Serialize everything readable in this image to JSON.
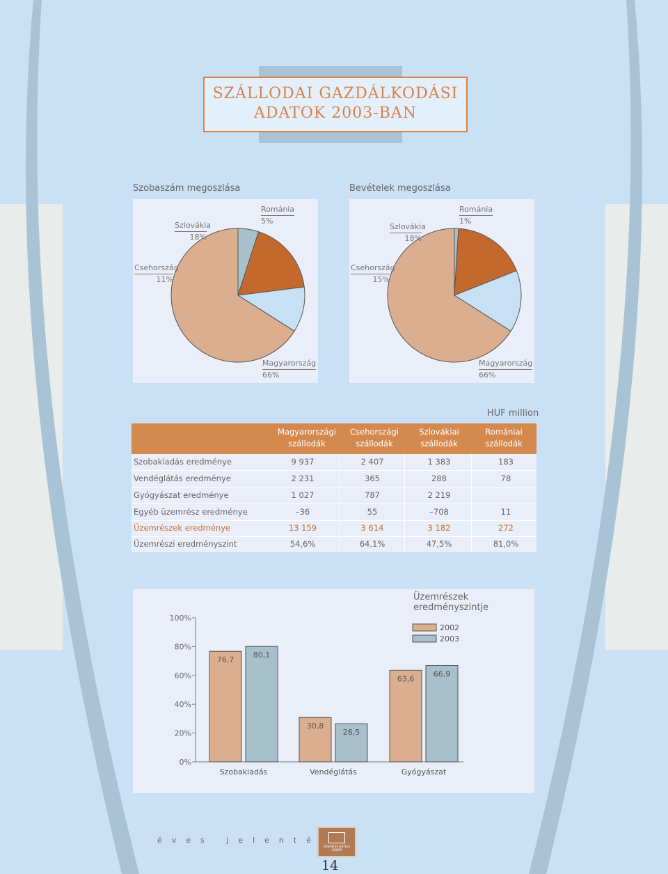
{
  "title": {
    "line1": "SZÁLLODAI GAZDÁLKODÁSI",
    "line2": "ADATOK 2003-BAN"
  },
  "pie_left": {
    "caption": "Szobaszám megoszlása",
    "labels": [
      {
        "name": "Románia",
        "pct": "5%"
      },
      {
        "name": "Szlovákia",
        "pct": "18%"
      },
      {
        "name": "Csehország",
        "pct": "11%"
      },
      {
        "name": "Magyarország",
        "pct": "66%"
      }
    ]
  },
  "pie_right": {
    "caption": "Bevételek megoszlása",
    "labels": [
      {
        "name": "Románia",
        "pct": "1%"
      },
      {
        "name": "Szlovákia",
        "pct": "18%"
      },
      {
        "name": "Csehország",
        "pct": "15%"
      },
      {
        "name": "Magyarország",
        "pct": "66%"
      }
    ]
  },
  "table": {
    "unit": "HUF million",
    "columns": [
      [
        "Magyarországi",
        "szállodák"
      ],
      [
        "Csehországi",
        "szállodák"
      ],
      [
        "Szlovákiai",
        "szállodák"
      ],
      [
        "Romániai",
        "szállodák"
      ]
    ],
    "rows": [
      {
        "label": "Szobakiadás eredménye",
        "values": [
          "9 937",
          "2 407",
          "1 383",
          "183"
        ]
      },
      {
        "label": "Vendéglátás eredménye",
        "values": [
          "2 231",
          "365",
          "288",
          "78"
        ]
      },
      {
        "label": "Gyógyászat eredménye",
        "values": [
          "1 027",
          "787",
          "2 219",
          ""
        ]
      },
      {
        "label": "Egyéb üzemrész eredménye",
        "values": [
          "–36",
          "55",
          "–708",
          "11"
        ]
      },
      {
        "label": "Üzemrészek eredménye",
        "values": [
          "13 159",
          "3 614",
          "3 182",
          "272"
        ],
        "highlight": true
      },
      {
        "label": "Üzemrészi eredményszint",
        "values": [
          "54,6%",
          "64,1%",
          "47,5%",
          "81,0%"
        ]
      }
    ]
  },
  "chart_data": [
    {
      "type": "pie",
      "title": "Szobaszám megoszlása",
      "categories": [
        "Románia",
        "Szlovákia",
        "Csehország",
        "Magyarország"
      ],
      "values": [
        5,
        18,
        11,
        66
      ],
      "colors": [
        "#a8bfcc",
        "#c4692e",
        "#c7e0f3",
        "#dbae8f"
      ]
    },
    {
      "type": "pie",
      "title": "Bevételek megoszlása",
      "categories": [
        "Románia",
        "Szlovákia",
        "Csehország",
        "Magyarország"
      ],
      "values": [
        1,
        18,
        15,
        66
      ],
      "colors": [
        "#a8bfcc",
        "#c4692e",
        "#c7e0f3",
        "#dbae8f"
      ]
    },
    {
      "type": "bar",
      "title": "Üzemrészek eredményszintje",
      "categories": [
        "Szobakiadás",
        "Vendéglátás",
        "Gyógyászat"
      ],
      "series": [
        {
          "name": "2002",
          "values": [
            76.7,
            30.8,
            63.6
          ],
          "labels": [
            "76,7",
            "30,8",
            "63,6"
          ],
          "color": "#dbae8f"
        },
        {
          "name": "2003",
          "values": [
            80.1,
            26.5,
            66.9
          ],
          "labels": [
            "80,1",
            "26,5",
            "66,9"
          ],
          "color": "#a8bfcc"
        }
      ],
      "yticks": [
        "0%",
        "20%",
        "40%",
        "60%",
        "80%",
        "100%"
      ],
      "ylim": [
        0,
        100
      ],
      "legend": "top-right"
    }
  ],
  "footer": {
    "text": "éves jelentés",
    "logo_text": "DANUBIUS HOTELS GROUP",
    "page": "14"
  }
}
